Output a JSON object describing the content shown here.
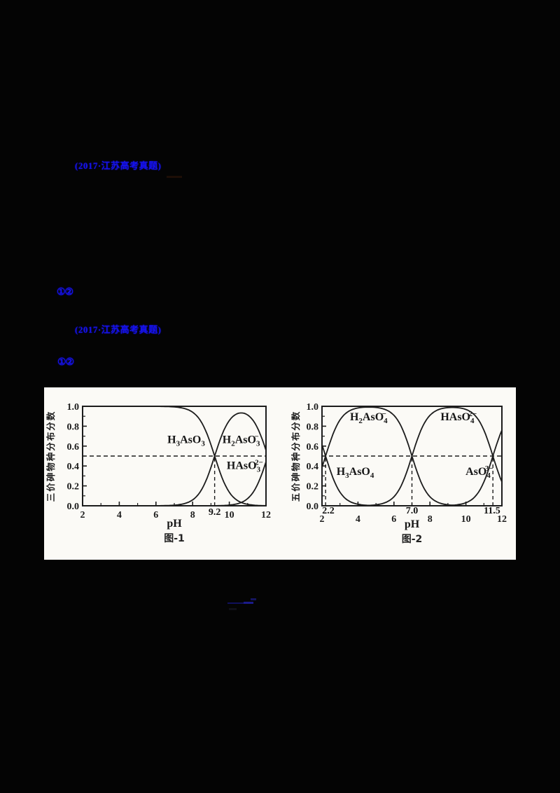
{
  "colors": {
    "page_bg": "#040404",
    "link_blue": "#1512f0",
    "panel_bg": "#fbfaf6",
    "chart_ink": "#1c1c1c"
  },
  "texts": {
    "heading1": "(2017·江苏高考真题)",
    "marker1": "①②",
    "heading2": "(2017·江苏高考真题)",
    "marker2": "①②"
  },
  "chart_data": [
    {
      "id": "fig1",
      "type": "line",
      "title": "图-1",
      "xlabel": "pH",
      "ylabel": "三价砷物种分布分数",
      "xlim": [
        2,
        12
      ],
      "ylim": [
        0,
        1
      ],
      "xticks": [
        2,
        4,
        6,
        8,
        10,
        12
      ],
      "xminor": [
        3,
        5,
        7,
        9,
        11
      ],
      "yticks": [
        "0.0",
        "0.2",
        "0.4",
        "0.6",
        "0.8",
        "1.0"
      ],
      "yminor": [
        0.1,
        0.3,
        0.5,
        0.7,
        0.9
      ],
      "grid": false,
      "legend": "labels-on-curves",
      "model": "acid_distribution_fractions",
      "pKa": [
        9.2,
        12.1
      ],
      "dashed_h": 0.5,
      "dashed_v": [
        9.2
      ],
      "crossing_labels": [
        {
          "text": "9.2",
          "x": 9.2
        }
      ],
      "series": [
        {
          "name": "H_3AsO_3",
          "alpha_index": 0,
          "label_pos": [
            7.65,
            0.63
          ],
          "key_points": [
            [
              2,
              1.0
            ],
            [
              7,
              0.99
            ],
            [
              8,
              0.94
            ],
            [
              9.2,
              0.5
            ],
            [
              10,
              0.14
            ],
            [
              11,
              0.01
            ],
            [
              12,
              0.0
            ]
          ]
        },
        {
          "name": "H_2AsO_3^-",
          "alpha_index": 1,
          "label_pos": [
            10.65,
            0.63
          ],
          "key_points": [
            [
              7,
              0.01
            ],
            [
              8,
              0.06
            ],
            [
              9.2,
              0.5
            ],
            [
              10,
              0.85
            ],
            [
              10.7,
              0.93
            ],
            [
              11.5,
              0.78
            ],
            [
              12,
              0.56
            ]
          ]
        },
        {
          "name": "HAsO_3^2-",
          "alpha_index": 2,
          "label_pos": [
            10.85,
            0.37
          ],
          "key_points": [
            [
              9.5,
              0.01
            ],
            [
              10.7,
              0.03
            ],
            [
              11,
              0.07
            ],
            [
              11.5,
              0.2
            ],
            [
              12,
              0.44
            ]
          ]
        }
      ]
    },
    {
      "id": "fig2",
      "type": "line",
      "title": "图-2",
      "xlabel": "pH",
      "ylabel": "五价砷物种分布分数",
      "xlim": [
        2,
        12
      ],
      "ylim": [
        0,
        1
      ],
      "xticks": [
        2,
        4,
        6,
        8,
        10,
        12
      ],
      "xminor": [
        3,
        5,
        7,
        9,
        11
      ],
      "yticks": [
        "0.0",
        "0.2",
        "0.4",
        "0.6",
        "0.8",
        "1.0"
      ],
      "yminor": [
        0.1,
        0.3,
        0.5,
        0.7,
        0.9
      ],
      "grid": false,
      "legend": "labels-on-curves",
      "model": "acid_distribution_fractions",
      "pKa": [
        2.2,
        7.0,
        11.5
      ],
      "dashed_h": 0.5,
      "dashed_v": [
        2.2,
        7.0,
        11.5
      ],
      "crossing_labels": [
        {
          "text": "2.2",
          "x": 2.35
        },
        {
          "text": "7.0",
          "x": 7.0
        },
        {
          "text": "11.5",
          "x": 11.45
        }
      ],
      "series": [
        {
          "name": "H_3AsO_4",
          "alpha_index": 0,
          "label_pos": [
            3.85,
            0.31
          ],
          "key_points": [
            [
              2,
              0.61
            ],
            [
              2.2,
              0.5
            ],
            [
              3,
              0.14
            ],
            [
              4,
              0.02
            ],
            [
              5,
              0.0
            ]
          ]
        },
        {
          "name": "H_2AsO_4^-",
          "alpha_index": 1,
          "label_pos": [
            4.6,
            0.86
          ],
          "key_points": [
            [
              2,
              0.39
            ],
            [
              2.2,
              0.5
            ],
            [
              3,
              0.86
            ],
            [
              4,
              0.98
            ],
            [
              5,
              0.99
            ],
            [
              6,
              0.91
            ],
            [
              7,
              0.5
            ],
            [
              8,
              0.09
            ],
            [
              9,
              0.01
            ]
          ]
        },
        {
          "name": "HAsO_4^2-",
          "alpha_index": 2,
          "label_pos": [
            9.6,
            0.86
          ],
          "key_points": [
            [
              5,
              0.01
            ],
            [
              6,
              0.09
            ],
            [
              7,
              0.5
            ],
            [
              8,
              0.91
            ],
            [
              9,
              0.99
            ],
            [
              10,
              0.97
            ],
            [
              11,
              0.76
            ],
            [
              11.5,
              0.5
            ],
            [
              12,
              0.24
            ]
          ]
        },
        {
          "name": "AsO_4^3-",
          "alpha_index": 3,
          "label_pos": [
            10.75,
            0.31
          ],
          "key_points": [
            [
              10,
              0.03
            ],
            [
              11,
              0.24
            ],
            [
              11.5,
              0.5
            ],
            [
              12,
              0.76
            ]
          ]
        }
      ]
    }
  ]
}
